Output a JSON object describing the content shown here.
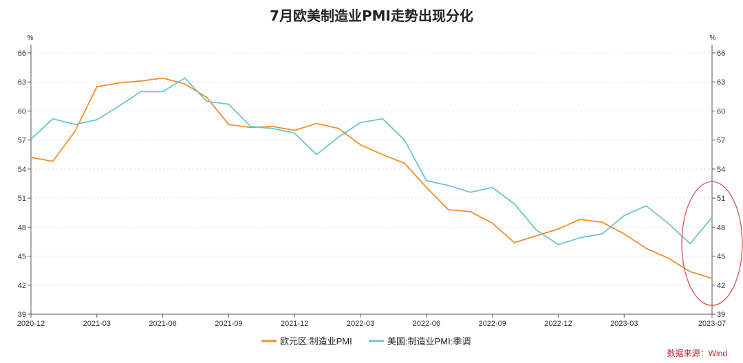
{
  "chart_data": {
    "type": "line",
    "title": "7月欧美制造业PMI走势出现分化",
    "y_unit_left": "%",
    "y_unit_right": "%",
    "ylim": [
      39,
      66
    ],
    "y_ticks": [
      39,
      42,
      45,
      48,
      51,
      54,
      57,
      60,
      63,
      66
    ],
    "x": [
      "2020-12",
      "2021-01",
      "2021-02",
      "2021-03",
      "2021-04",
      "2021-05",
      "2021-06",
      "2021-07",
      "2021-08",
      "2021-09",
      "2021-10",
      "2021-11",
      "2021-12",
      "2022-01",
      "2022-02",
      "2022-03",
      "2022-04",
      "2022-05",
      "2022-06",
      "2022-07",
      "2022-08",
      "2022-09",
      "2022-10",
      "2022-11",
      "2022-12",
      "2023-01",
      "2023-02",
      "2023-03",
      "2023-04",
      "2023-05",
      "2023-06",
      "2023-07"
    ],
    "x_tick_labels": [
      "2020-12",
      "2021-03",
      "2021-06",
      "2021-09",
      "2021-12",
      "2022-03",
      "2022-06",
      "2022-09",
      "2022-12",
      "2023-03",
      "2023-07"
    ],
    "grid": true,
    "legend_position": "bottom",
    "series": [
      {
        "name": "欧元区:制造业PMI",
        "color": "#f28e2b",
        "values": [
          55.2,
          54.8,
          57.9,
          62.5,
          62.9,
          63.1,
          63.4,
          62.8,
          61.4,
          58.6,
          58.3,
          58.4,
          58.0,
          58.7,
          58.2,
          56.5,
          55.5,
          54.6,
          52.1,
          49.8,
          49.6,
          48.4,
          46.4,
          47.1,
          47.8,
          48.8,
          48.5,
          47.3,
          45.8,
          44.8,
          43.4,
          42.7
        ]
      },
      {
        "name": "美国:制造业PMI:季调",
        "color": "#6cc5c9",
        "values": [
          57.1,
          59.2,
          58.6,
          59.1,
          60.5,
          62.0,
          62.0,
          63.4,
          61.0,
          60.7,
          58.4,
          58.2,
          57.7,
          55.5,
          57.3,
          58.8,
          59.2,
          57.0,
          52.8,
          52.3,
          51.6,
          52.1,
          50.4,
          47.7,
          46.2,
          46.9,
          47.3,
          49.2,
          50.2,
          48.4,
          46.3,
          49.0
        ]
      }
    ],
    "annotations": [
      {
        "type": "ellipse-highlight",
        "color": "#d9534f",
        "target": "2023-07"
      }
    ],
    "source": "数据来源：Wind"
  }
}
